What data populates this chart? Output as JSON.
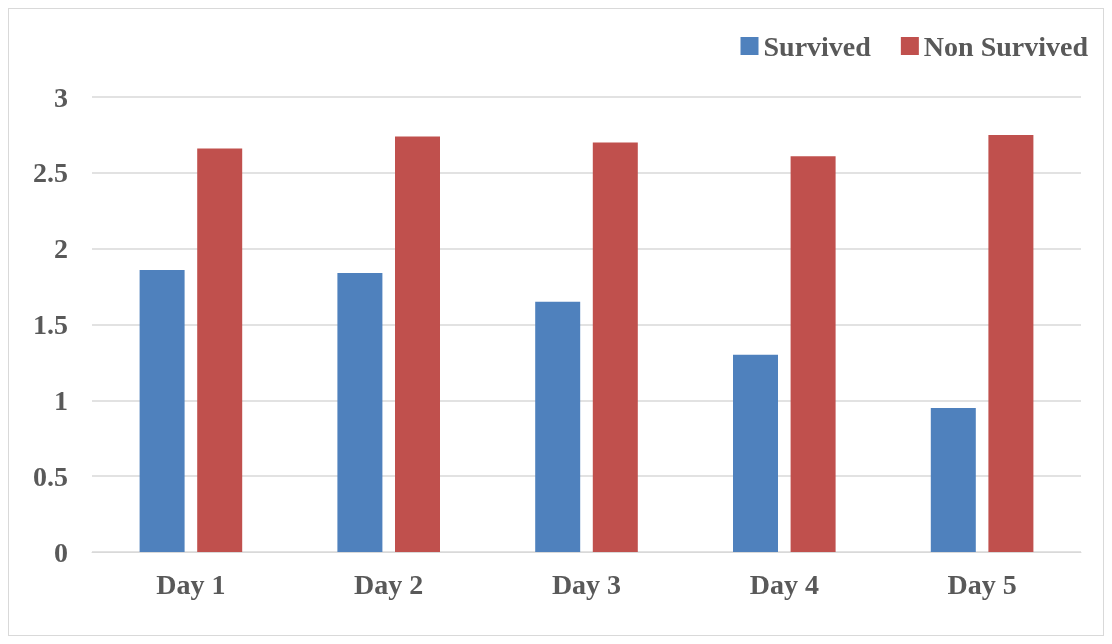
{
  "chart_data": {
    "type": "bar",
    "categories": [
      "Day 1",
      "Day 2",
      "Day 3",
      "Day 4",
      "Day 5"
    ],
    "series": [
      {
        "name": "Survived",
        "color": "#4f81bd",
        "values": [
          1.86,
          1.84,
          1.65,
          1.3,
          0.95
        ]
      },
      {
        "name": "Non Survived",
        "color": "#c0504d",
        "values": [
          2.66,
          2.74,
          2.7,
          2.61,
          2.75
        ]
      }
    ],
    "ylim": [
      0,
      3
    ],
    "yticks": [
      0,
      0.5,
      1,
      1.5,
      2,
      2.5,
      3
    ],
    "grid": "y",
    "legend": "top right"
  }
}
